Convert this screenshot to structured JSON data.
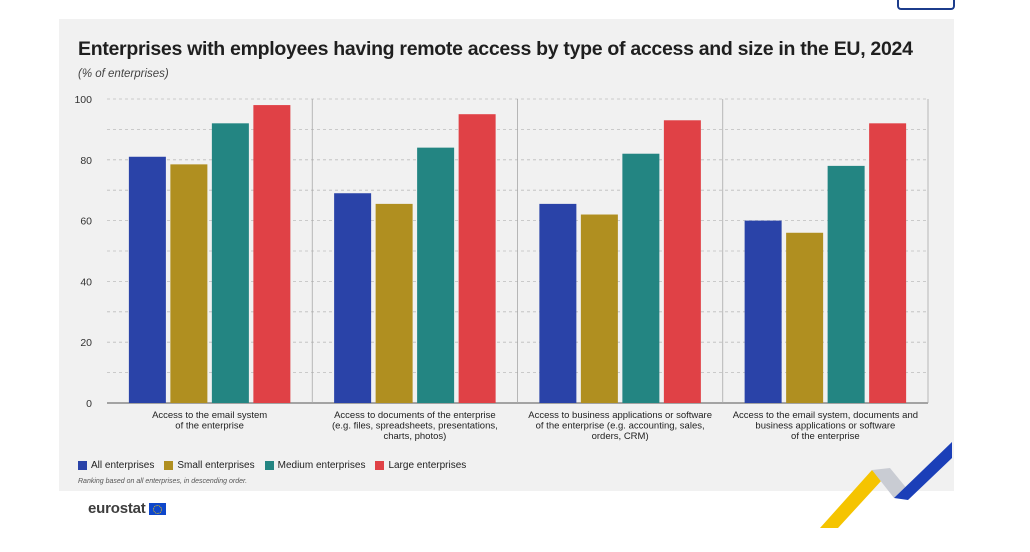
{
  "title": "Enterprises with employees having remote access by type of access and size in the EU, 2024",
  "subtitle": "(% of enterprises)",
  "footnote": "Ranking based on all enterprises, in descending order.",
  "brand": "eurostat",
  "colors": {
    "all": "#2a43a8",
    "small": "#b08f20",
    "medium": "#238582",
    "large": "#e04146",
    "panel": "#f1f1f1",
    "deco_yellow": "#f5c400",
    "deco_blue": "#1b3fb8"
  },
  "chart_data": {
    "type": "bar",
    "title": "Enterprises with employees having remote access by type of access and size in the EU, 2024",
    "ylabel": "(% of enterprises)",
    "xlabel": "",
    "ylim": [
      0,
      100
    ],
    "yticks": [
      0,
      20,
      40,
      60,
      80,
      100
    ],
    "grid": true,
    "legend_position": "bottom-left",
    "categories": [
      [
        "Access to the email system",
        "of the enterprise"
      ],
      [
        "Access to documents of the enterprise",
        "(e.g. files, spreadsheets, presentations,",
        "charts, photos)"
      ],
      [
        "Access to business applications or software",
        "of the enterprise (e.g. accounting, sales,",
        "orders, CRM)"
      ],
      [
        "Access to the email system, documents and",
        "business applications or software",
        "of the enterprise"
      ]
    ],
    "series": [
      {
        "name": "All enterprises",
        "key": "all",
        "values": [
          81,
          69,
          65.5,
          60
        ]
      },
      {
        "name": "Small enterprises",
        "key": "small",
        "values": [
          78.5,
          65.5,
          62,
          56
        ]
      },
      {
        "name": "Medium enterprises",
        "key": "medium",
        "values": [
          92,
          84,
          82,
          78
        ]
      },
      {
        "name": "Large enterprises",
        "key": "large",
        "values": [
          98,
          95,
          93,
          92
        ]
      }
    ]
  }
}
